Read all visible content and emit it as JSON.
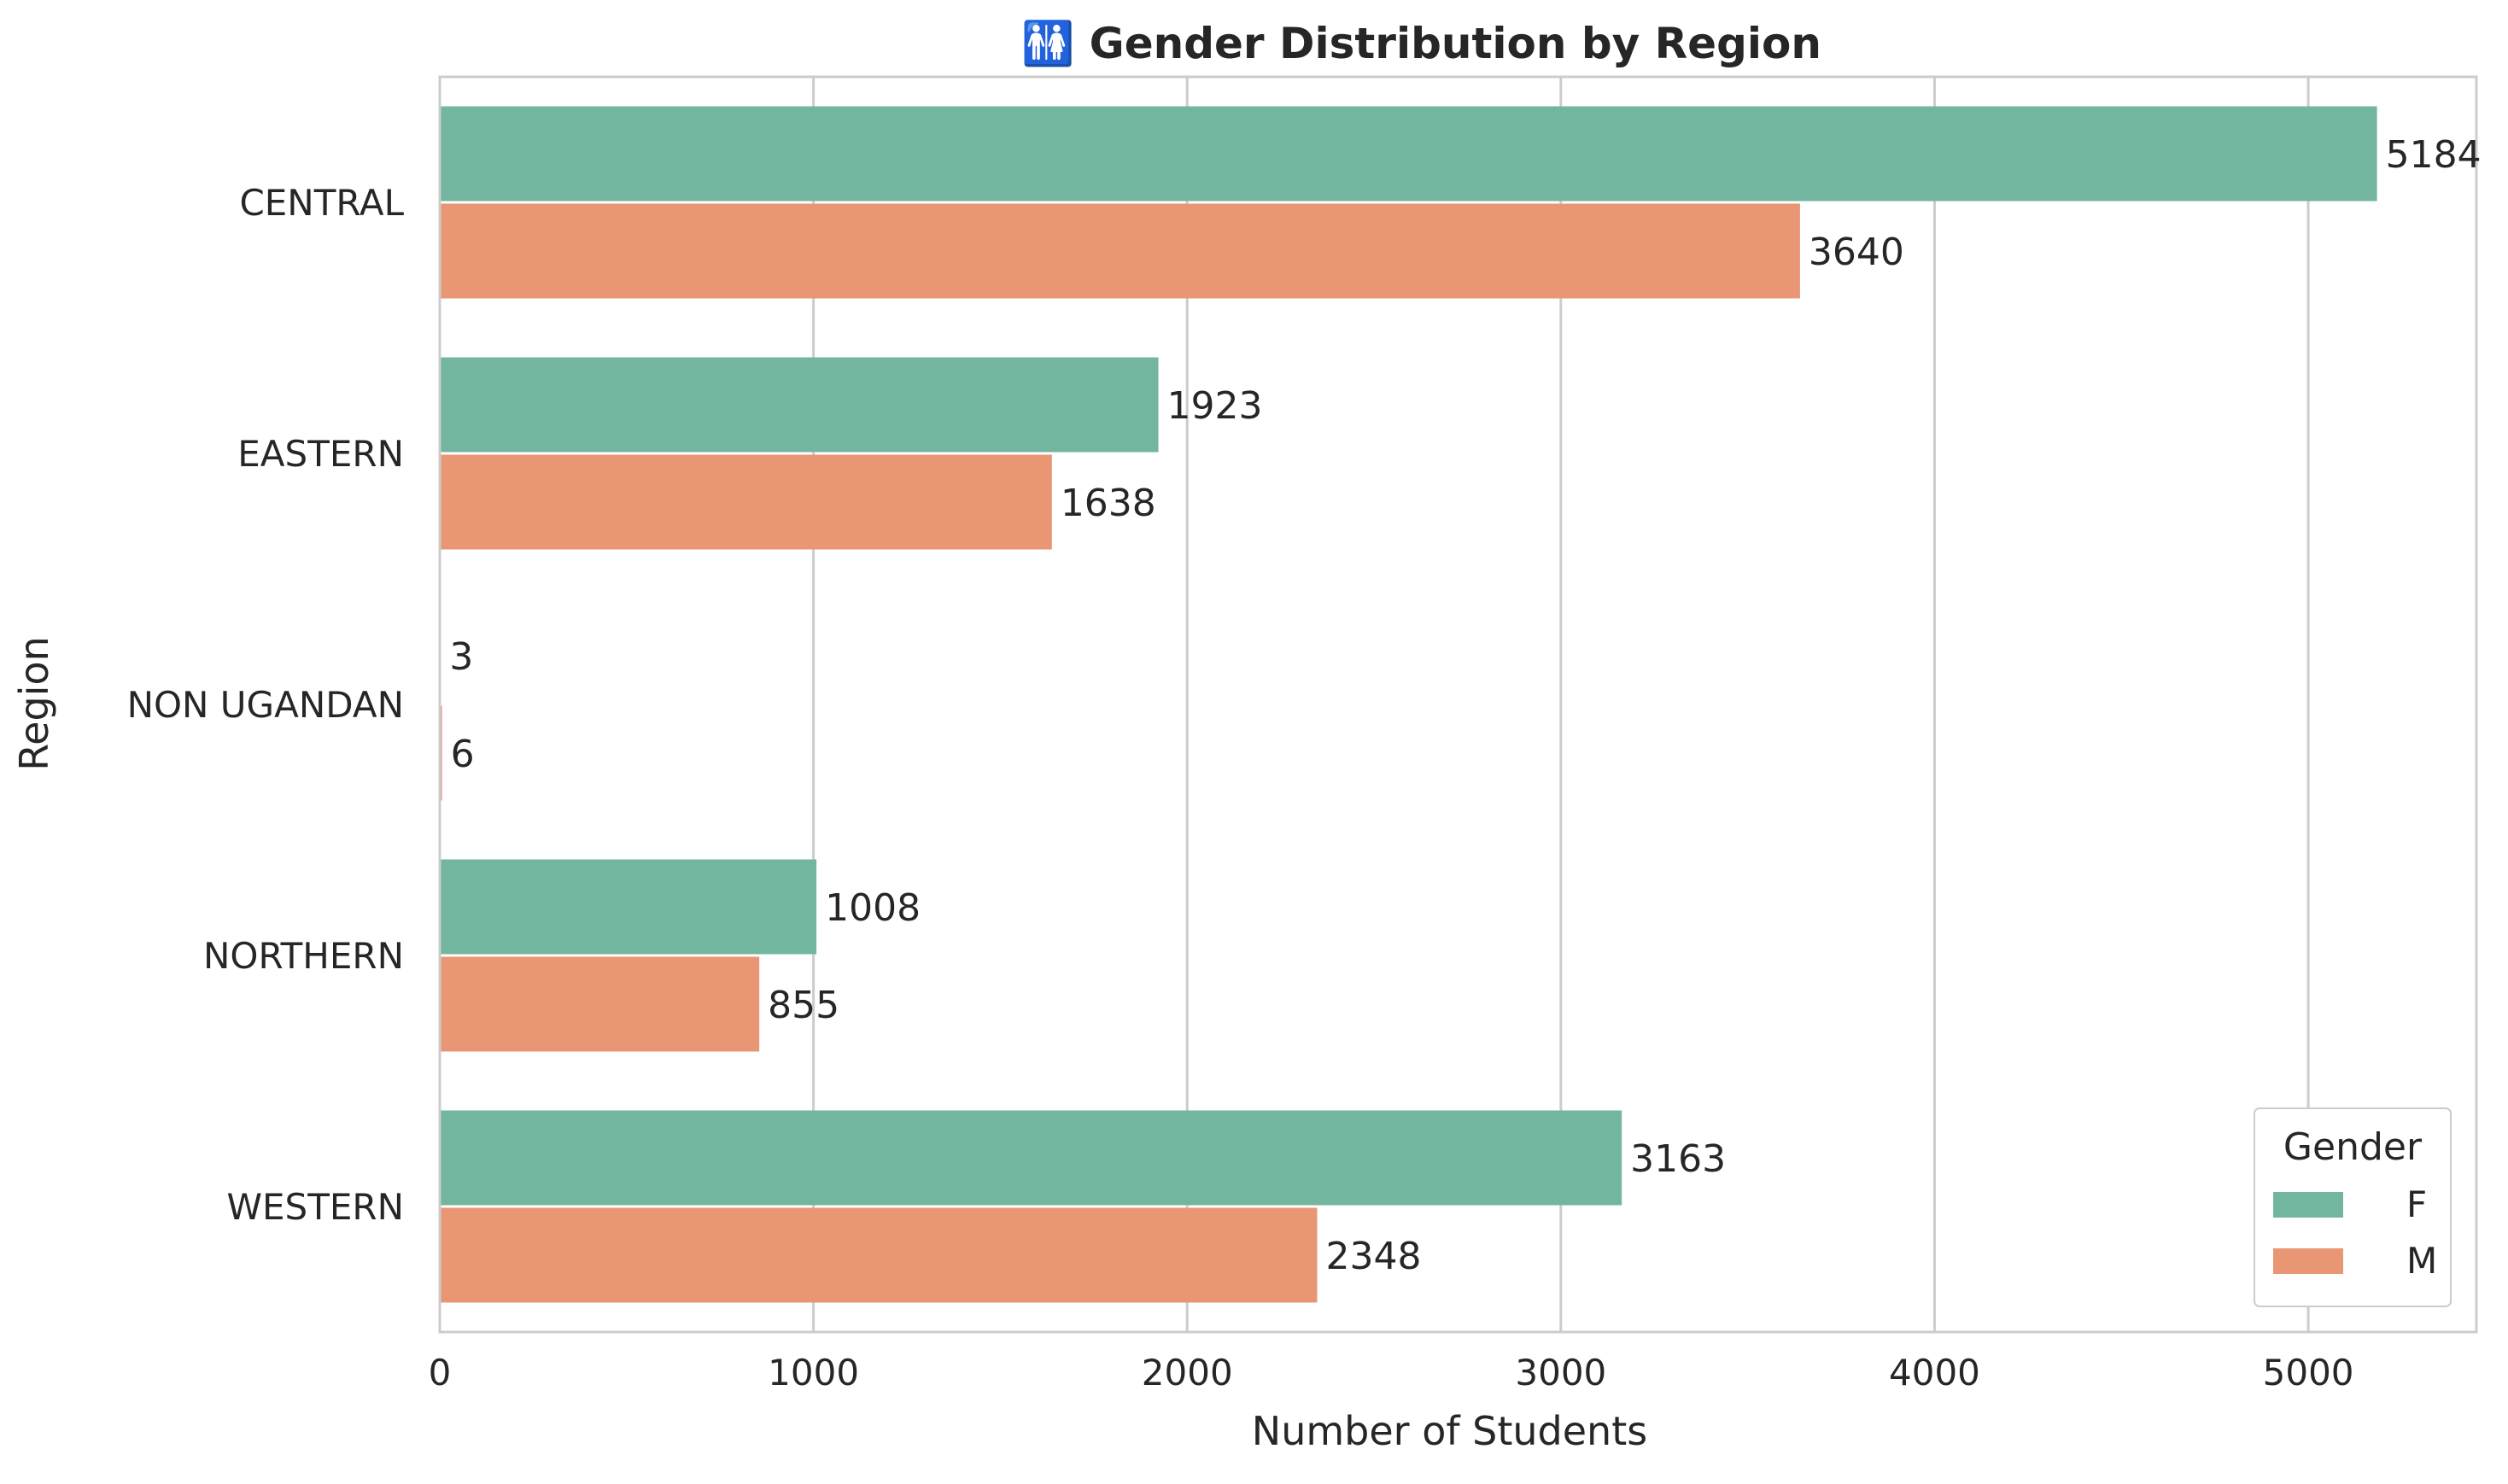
{
  "chart_data": {
    "type": "bar",
    "orientation": "horizontal",
    "title": "🚻 Gender Distribution by Region",
    "xlabel": "Number of Students",
    "ylabel": "Region",
    "categories": [
      "CENTRAL",
      "EASTERN",
      "NON UGANDAN",
      "NORTHERN",
      "WESTERN"
    ],
    "series": [
      {
        "name": "F",
        "color": "#73b6a0",
        "values": [
          5184,
          1923,
          3,
          1008,
          3163
        ]
      },
      {
        "name": "M",
        "color": "#e99674",
        "values": [
          3640,
          1638,
          6,
          855,
          2348
        ]
      }
    ],
    "xlim": [
      0,
      5450
    ],
    "xticks": [
      0,
      1000,
      2000,
      3000,
      4000,
      5000
    ],
    "grid": true,
    "legend": {
      "title": "Gender",
      "placement": "bottom-right"
    }
  }
}
